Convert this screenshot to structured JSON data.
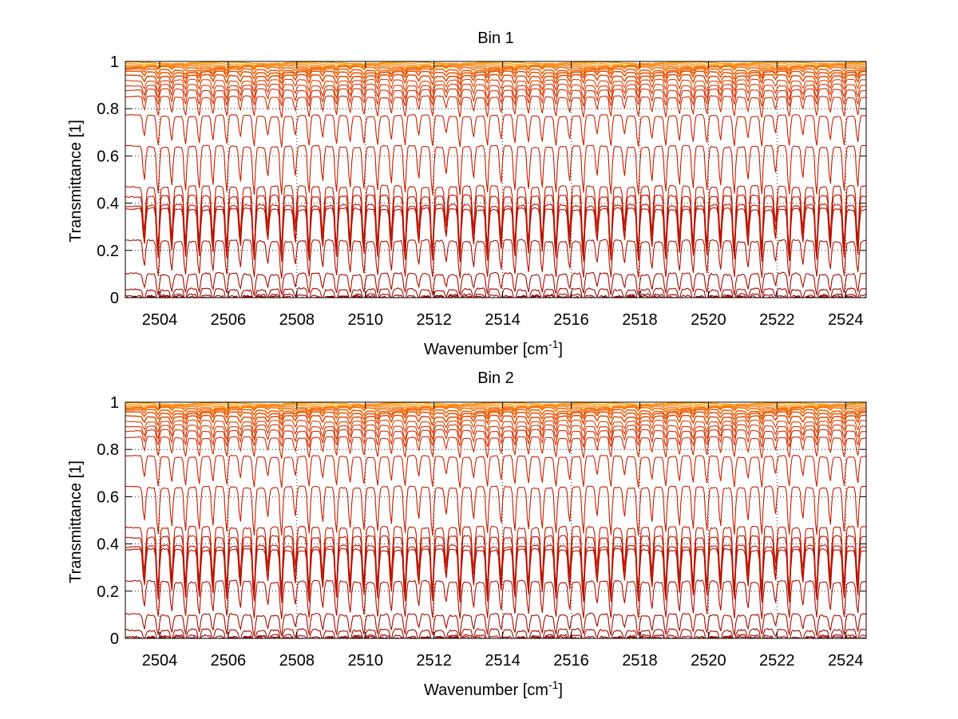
{
  "chart_data": [
    {
      "type": "line",
      "title": "Bin 1",
      "xlabel": "Wavenumber [cm",
      "xlabel_sup": "-1",
      "xlabel_end": "]",
      "ylabel": "Transmittance [1]",
      "xlim": [
        2503,
        2524.6
      ],
      "ylim": [
        0,
        1
      ],
      "xticks": [
        2504,
        2506,
        2508,
        2510,
        2512,
        2514,
        2516,
        2518,
        2520,
        2522,
        2524
      ],
      "yticks": [
        0,
        0.2,
        0.4,
        0.6,
        0.8,
        1
      ],
      "grid": true,
      "line_count": 24,
      "line_baselines": [
        0.995,
        0.99,
        0.985,
        0.98,
        0.975,
        0.965,
        0.955,
        0.94,
        0.92,
        0.9,
        0.88,
        0.85,
        0.77,
        0.64,
        0.47,
        0.43,
        0.39,
        0.375,
        0.24,
        0.1,
        0.035,
        0.01,
        0.003,
        0.0
      ]
    },
    {
      "type": "line",
      "title": "Bin 2",
      "xlabel": "Wavenumber [cm",
      "xlabel_sup": "-1",
      "xlabel_end": "]",
      "ylabel": "Transmittance [1]",
      "xlim": [
        2503,
        2524.6
      ],
      "ylim": [
        0,
        1
      ],
      "xticks": [
        2504,
        2506,
        2508,
        2510,
        2512,
        2514,
        2516,
        2518,
        2520,
        2522,
        2524
      ],
      "yticks": [
        0,
        0.2,
        0.4,
        0.6,
        0.8,
        1
      ],
      "grid": true,
      "line_count": 24,
      "line_baselines": [
        0.995,
        0.99,
        0.985,
        0.98,
        0.975,
        0.965,
        0.955,
        0.94,
        0.92,
        0.9,
        0.88,
        0.85,
        0.77,
        0.64,
        0.47,
        0.43,
        0.39,
        0.375,
        0.24,
        0.1,
        0.035,
        0.01,
        0.003,
        0.0
      ]
    }
  ]
}
